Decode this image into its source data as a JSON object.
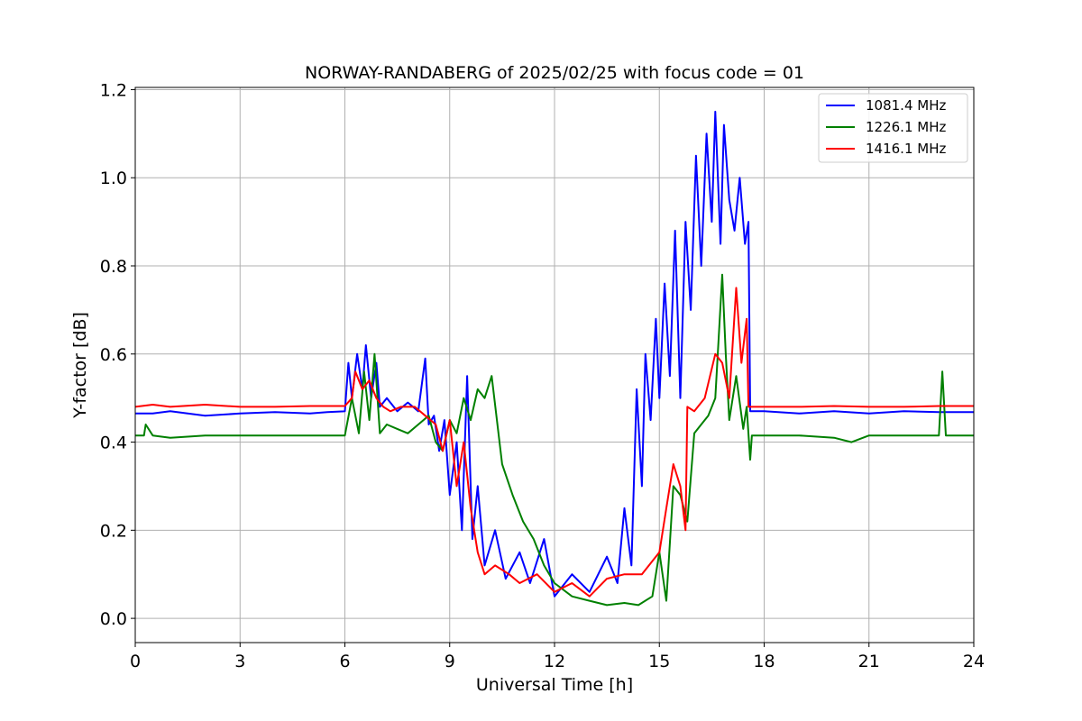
{
  "chart_data": {
    "type": "line",
    "title": "NORWAY-RANDABERG of 2025/02/25 with focus code = 01",
    "xlabel": "Universal Time [h]",
    "ylabel": "Y-factor [dB]",
    "xlim": [
      0,
      24
    ],
    "ylim": [
      -0.055,
      1.205
    ],
    "xticks": [
      0,
      3,
      6,
      9,
      12,
      15,
      18,
      21,
      24
    ],
    "xtick_labels": [
      "0",
      "3",
      "6",
      "9",
      "12",
      "15",
      "18",
      "21",
      "24"
    ],
    "yticks": [
      0.0,
      0.2,
      0.4,
      0.6,
      0.8,
      1.0,
      1.2
    ],
    "ytick_labels": [
      "0.0",
      "0.2",
      "0.4",
      "0.6",
      "0.8",
      "1.0",
      "1.2"
    ],
    "grid": true,
    "legend_position": "top-right",
    "series": [
      {
        "name": "1081.4 MHz",
        "color": "#0000ff",
        "x": [
          0,
          0.5,
          1,
          2,
          3,
          4,
          5,
          5.5,
          6.0,
          6.1,
          6.2,
          6.35,
          6.5,
          6.6,
          6.75,
          6.9,
          7.0,
          7.2,
          7.5,
          7.8,
          8.1,
          8.3,
          8.4,
          8.55,
          8.7,
          8.85,
          9.0,
          9.2,
          9.35,
          9.5,
          9.65,
          9.8,
          10.0,
          10.3,
          10.6,
          11.0,
          11.3,
          11.7,
          12.0,
          12.5,
          13.0,
          13.5,
          13.8,
          14.0,
          14.2,
          14.35,
          14.5,
          14.6,
          14.75,
          14.9,
          15.0,
          15.15,
          15.3,
          15.45,
          15.6,
          15.75,
          15.9,
          16.05,
          16.2,
          16.35,
          16.5,
          16.6,
          16.75,
          16.85,
          17.0,
          17.15,
          17.3,
          17.45,
          17.55,
          17.6,
          18,
          19,
          20,
          21,
          22,
          23,
          24
        ],
        "values": [
          0.465,
          0.465,
          0.47,
          0.46,
          0.465,
          0.468,
          0.465,
          0.468,
          0.47,
          0.58,
          0.5,
          0.6,
          0.52,
          0.62,
          0.5,
          0.58,
          0.48,
          0.5,
          0.47,
          0.49,
          0.47,
          0.59,
          0.44,
          0.46,
          0.38,
          0.45,
          0.28,
          0.4,
          0.2,
          0.55,
          0.18,
          0.3,
          0.12,
          0.2,
          0.09,
          0.15,
          0.08,
          0.18,
          0.05,
          0.1,
          0.06,
          0.14,
          0.08,
          0.25,
          0.12,
          0.52,
          0.3,
          0.6,
          0.45,
          0.68,
          0.5,
          0.76,
          0.55,
          0.88,
          0.5,
          0.9,
          0.7,
          1.05,
          0.8,
          1.1,
          0.9,
          1.15,
          0.85,
          1.12,
          0.95,
          0.88,
          1.0,
          0.85,
          0.9,
          0.47,
          0.47,
          0.465,
          0.47,
          0.465,
          0.47,
          0.468,
          0.468
        ]
      },
      {
        "name": "1226.1 MHz",
        "color": "#008000",
        "x": [
          0,
          0.25,
          0.3,
          0.5,
          1,
          2,
          3,
          4,
          5,
          6.0,
          6.2,
          6.4,
          6.55,
          6.7,
          6.85,
          7.0,
          7.2,
          7.5,
          7.8,
          8.1,
          8.4,
          8.6,
          8.8,
          9.0,
          9.2,
          9.4,
          9.6,
          9.8,
          10.0,
          10.2,
          10.5,
          10.8,
          11.1,
          11.4,
          11.7,
          12.0,
          12.5,
          13.0,
          13.5,
          14.0,
          14.4,
          14.8,
          15.0,
          15.2,
          15.4,
          15.6,
          15.8,
          16.0,
          16.2,
          16.4,
          16.6,
          16.8,
          16.9,
          17.0,
          17.2,
          17.4,
          17.5,
          17.6,
          17.65,
          18,
          19,
          20,
          20.5,
          21,
          22,
          23,
          23.1,
          23.2,
          24
        ],
        "values": [
          0.415,
          0.415,
          0.44,
          0.415,
          0.41,
          0.415,
          0.415,
          0.415,
          0.415,
          0.415,
          0.5,
          0.42,
          0.56,
          0.45,
          0.6,
          0.42,
          0.44,
          0.43,
          0.42,
          0.44,
          0.46,
          0.4,
          0.38,
          0.45,
          0.42,
          0.5,
          0.45,
          0.52,
          0.5,
          0.55,
          0.35,
          0.28,
          0.22,
          0.18,
          0.12,
          0.08,
          0.05,
          0.04,
          0.03,
          0.035,
          0.03,
          0.05,
          0.15,
          0.04,
          0.3,
          0.28,
          0.22,
          0.42,
          0.44,
          0.46,
          0.5,
          0.78,
          0.6,
          0.45,
          0.55,
          0.43,
          0.48,
          0.36,
          0.415,
          0.415,
          0.415,
          0.41,
          0.4,
          0.415,
          0.415,
          0.415,
          0.56,
          0.415,
          0.415
        ]
      },
      {
        "name": "1416.1 MHz",
        "color": "#ff0000",
        "x": [
          0,
          0.5,
          1,
          2,
          3,
          4,
          5,
          6.0,
          6.2,
          6.3,
          6.5,
          6.7,
          6.9,
          7.1,
          7.3,
          7.6,
          8.0,
          8.3,
          8.6,
          8.8,
          9.0,
          9.2,
          9.4,
          9.6,
          9.8,
          10.0,
          10.3,
          10.7,
          11.0,
          11.5,
          12.0,
          12.5,
          13.0,
          13.5,
          14.0,
          14.5,
          15.0,
          15.2,
          15.4,
          15.6,
          15.75,
          15.8,
          16.0,
          16.3,
          16.6,
          16.8,
          17.0,
          17.2,
          17.35,
          17.5,
          17.55,
          18,
          19,
          20,
          21,
          22,
          23,
          24
        ],
        "values": [
          0.48,
          0.485,
          0.48,
          0.485,
          0.48,
          0.48,
          0.482,
          0.482,
          0.5,
          0.56,
          0.52,
          0.54,
          0.5,
          0.48,
          0.47,
          0.48,
          0.48,
          0.46,
          0.44,
          0.38,
          0.45,
          0.3,
          0.4,
          0.25,
          0.15,
          0.1,
          0.12,
          0.1,
          0.08,
          0.1,
          0.06,
          0.08,
          0.05,
          0.09,
          0.1,
          0.1,
          0.15,
          0.25,
          0.35,
          0.3,
          0.2,
          0.48,
          0.47,
          0.5,
          0.6,
          0.58,
          0.5,
          0.75,
          0.58,
          0.68,
          0.48,
          0.48,
          0.48,
          0.482,
          0.48,
          0.48,
          0.482,
          0.482
        ]
      }
    ]
  }
}
